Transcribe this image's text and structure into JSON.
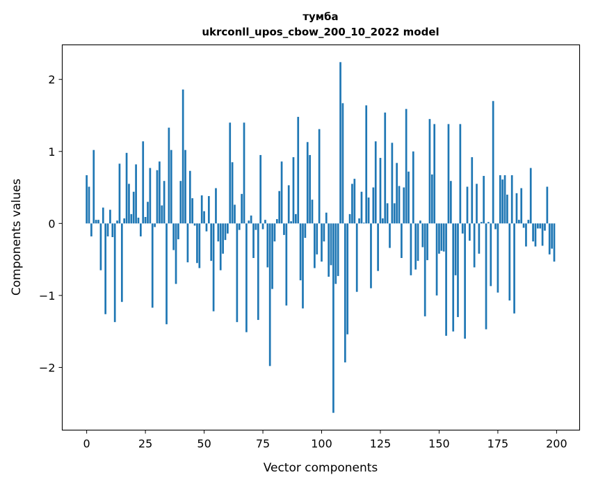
{
  "chart_data": {
    "type": "bar",
    "title": "тумба",
    "subtitle": "ukrconll_upos_cbow_200_10_2022 model",
    "xlabel": "Vector components",
    "ylabel": "Components values",
    "xlim": [
      -10.4,
      209.8
    ],
    "ylim": [
      -2.87,
      2.48
    ],
    "xticks": [
      0,
      25,
      50,
      75,
      100,
      125,
      150,
      175,
      200
    ],
    "xtick_labels": [
      "0",
      "25",
      "50",
      "75",
      "100",
      "125",
      "150",
      "175",
      "200"
    ],
    "yticks": [
      -2,
      -1,
      0,
      1,
      2
    ],
    "ytick_labels": [
      "−2",
      "−1",
      "0",
      "1",
      "2"
    ],
    "grid": false,
    "bar_color": "#1f77b4",
    "values": [
      0.67,
      0.51,
      -0.18,
      1.02,
      0.05,
      0.05,
      -0.65,
      0.22,
      -1.26,
      -0.18,
      0.19,
      -0.19,
      -1.37,
      0.04,
      0.83,
      -1.09,
      0.07,
      0.98,
      0.55,
      0.13,
      0.44,
      0.82,
      0.08,
      -0.18,
      1.14,
      0.09,
      0.3,
      0.77,
      -1.17,
      -0.05,
      0.74,
      0.86,
      0.25,
      0.59,
      -1.4,
      1.33,
      1.02,
      -0.37,
      -0.84,
      -0.22,
      0.59,
      1.86,
      1.02,
      -0.54,
      0.73,
      0.35,
      -0.03,
      -0.55,
      -0.62,
      0.39,
      0.17,
      -0.11,
      0.38,
      -0.52,
      -1.22,
      0.49,
      -0.25,
      -0.65,
      -0.42,
      -0.23,
      -0.14,
      1.4,
      0.85,
      0.26,
      -1.37,
      -0.09,
      0.41,
      1.4,
      -1.51,
      0.04,
      0.11,
      -0.48,
      -0.09,
      -1.34,
      0.95,
      -0.08,
      0.05,
      -0.61,
      -1.98,
      -0.91,
      -0.25,
      0.06,
      0.45,
      0.86,
      -0.16,
      -1.14,
      0.53,
      0.03,
      0.92,
      0.13,
      1.48,
      -0.79,
      -1.18,
      -0.2,
      1.13,
      0.95,
      0.33,
      -0.62,
      -0.43,
      1.31,
      -0.53,
      -0.25,
      0.15,
      -0.74,
      -0.58,
      -2.63,
      -0.84,
      -0.73,
      2.24,
      1.67,
      -1.93,
      -1.54,
      0.13,
      0.55,
      0.62,
      -0.95,
      0.07,
      0.44,
      0.01,
      1.64,
      0.36,
      -0.9,
      0.5,
      1.14,
      -0.66,
      0.91,
      0.07,
      1.54,
      0.28,
      -0.34,
      1.12,
      0.28,
      0.84,
      0.52,
      -0.48,
      0.5,
      1.59,
      0.72,
      -0.72,
      1.0,
      -0.64,
      -0.52,
      0.04,
      -0.33,
      -1.29,
      -0.51,
      1.45,
      0.68,
      1.38,
      -1.0,
      -0.42,
      -0.38,
      -0.39,
      -1.56,
      1.38,
      0.59,
      -1.5,
      -0.72,
      -1.3,
      1.38,
      -0.14,
      -1.6,
      0.51,
      -0.24,
      0.92,
      -0.61,
      0.55,
      -0.42,
      0.02,
      0.66,
      -1.47,
      0.02,
      -0.87,
      1.7,
      -0.08,
      -0.96,
      0.67,
      0.61,
      0.67,
      0.4,
      -1.07,
      0.67,
      -1.25,
      0.42,
      0.05,
      0.49,
      -0.06,
      -0.32,
      0.05,
      0.77,
      -0.25,
      -0.32,
      -0.07,
      -0.07,
      -0.31,
      -0.1,
      0.51,
      -0.43,
      -0.35,
      -0.53
    ]
  }
}
